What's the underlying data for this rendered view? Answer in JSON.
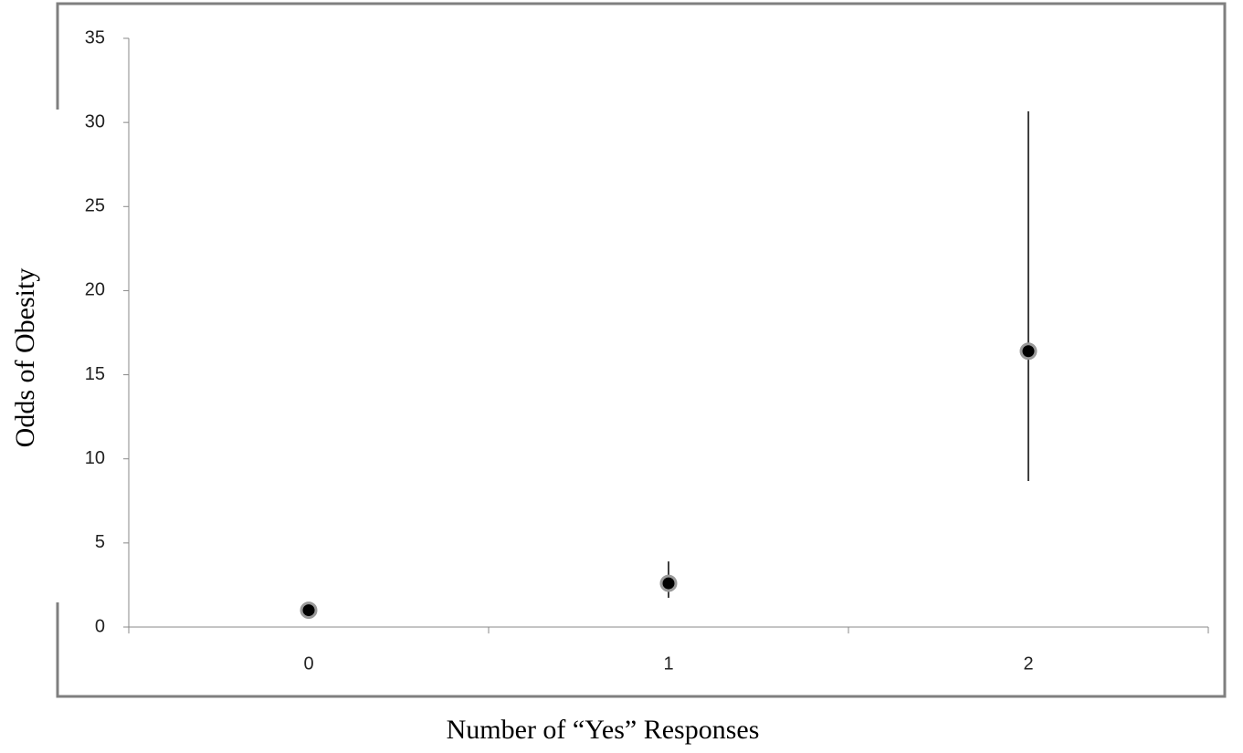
{
  "chart_data": {
    "type": "scatter",
    "x_label": "Number of “Yes” Responses",
    "y_label": "Odds of Obesity",
    "categories": [
      0,
      1,
      2
    ],
    "values": [
      1,
      2.6,
      16.4
    ],
    "lower": [
      1,
      1.74,
      8.68
    ],
    "upper": [
      1,
      3.9,
      30.66
    ],
    "color": "#000000",
    "ylim": [
      0,
      35
    ],
    "yticks": [
      0,
      5,
      10,
      15,
      20,
      25,
      30,
      35
    ]
  }
}
